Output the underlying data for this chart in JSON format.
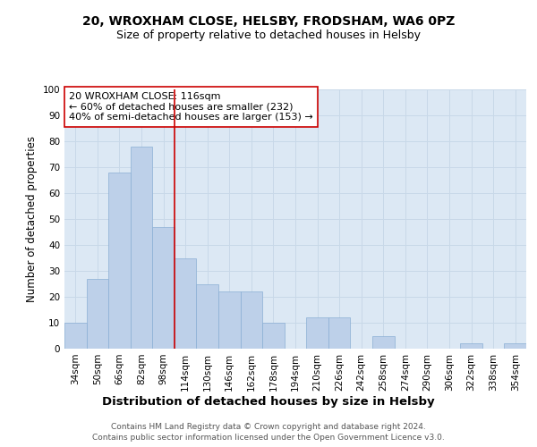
{
  "title_line1": "20, WROXHAM CLOSE, HELSBY, FRODSHAM, WA6 0PZ",
  "title_line2": "Size of property relative to detached houses in Helsby",
  "xlabel": "Distribution of detached houses by size in Helsby",
  "ylabel": "Number of detached properties",
  "categories": [
    "34sqm",
    "50sqm",
    "66sqm",
    "82sqm",
    "98sqm",
    "114sqm",
    "130sqm",
    "146sqm",
    "162sqm",
    "178sqm",
    "194sqm",
    "210sqm",
    "226sqm",
    "242sqm",
    "258sqm",
    "274sqm",
    "290sqm",
    "306sqm",
    "322sqm",
    "338sqm",
    "354sqm"
  ],
  "values": [
    10,
    27,
    68,
    78,
    47,
    35,
    25,
    22,
    22,
    10,
    0,
    12,
    12,
    0,
    5,
    0,
    0,
    0,
    2,
    0,
    2
  ],
  "bar_color": "#bdd0e9",
  "bar_edge_color": "#8aafd4",
  "vline_index": 4.5,
  "vline_color": "#cc0000",
  "annotation_line1": "20 WROXHAM CLOSE: 116sqm",
  "annotation_line2": "← 60% of detached houses are smaller (232)",
  "annotation_line3": "40% of semi-detached houses are larger (153) →",
  "annotation_box_color": "white",
  "annotation_box_edge_color": "#cc0000",
  "ylim": [
    0,
    100
  ],
  "yticks": [
    0,
    10,
    20,
    30,
    40,
    50,
    60,
    70,
    80,
    90,
    100
  ],
  "grid_color": "#c8d8e8",
  "background_color": "#dce8f4",
  "footnote_line1": "Contains HM Land Registry data © Crown copyright and database right 2024.",
  "footnote_line2": "Contains public sector information licensed under the Open Government Licence v3.0.",
  "title_fontsize": 10,
  "subtitle_fontsize": 9,
  "xlabel_fontsize": 9.5,
  "ylabel_fontsize": 8.5,
  "tick_fontsize": 7.5,
  "annotation_fontsize": 8,
  "footnote_fontsize": 6.5
}
